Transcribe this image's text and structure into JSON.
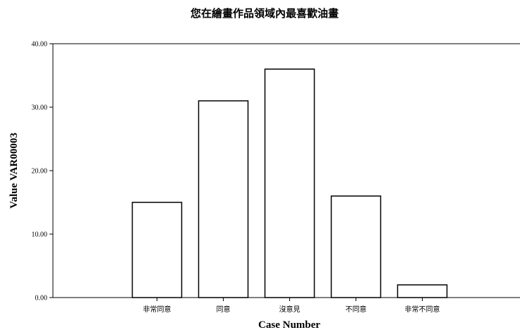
{
  "chart_data": {
    "type": "bar",
    "title": "您在繪畫作品領域內最喜歡油畫",
    "xlabel": "Case Number",
    "ylabel": "Value VAR00003",
    "categories": [
      "非常同意",
      "同意",
      "沒意見",
      "不同意",
      "非常不同意"
    ],
    "values": [
      15,
      31,
      36,
      16,
      2
    ],
    "ylim": [
      0,
      40
    ],
    "yticks": [
      0,
      10,
      20,
      30,
      40
    ],
    "ytick_labels": [
      "0.00",
      "10.00",
      "20.00",
      "30.00",
      "40.00"
    ],
    "grid": false,
    "bar_color": "#ffffff",
    "bar_edge_color": "#000000"
  }
}
